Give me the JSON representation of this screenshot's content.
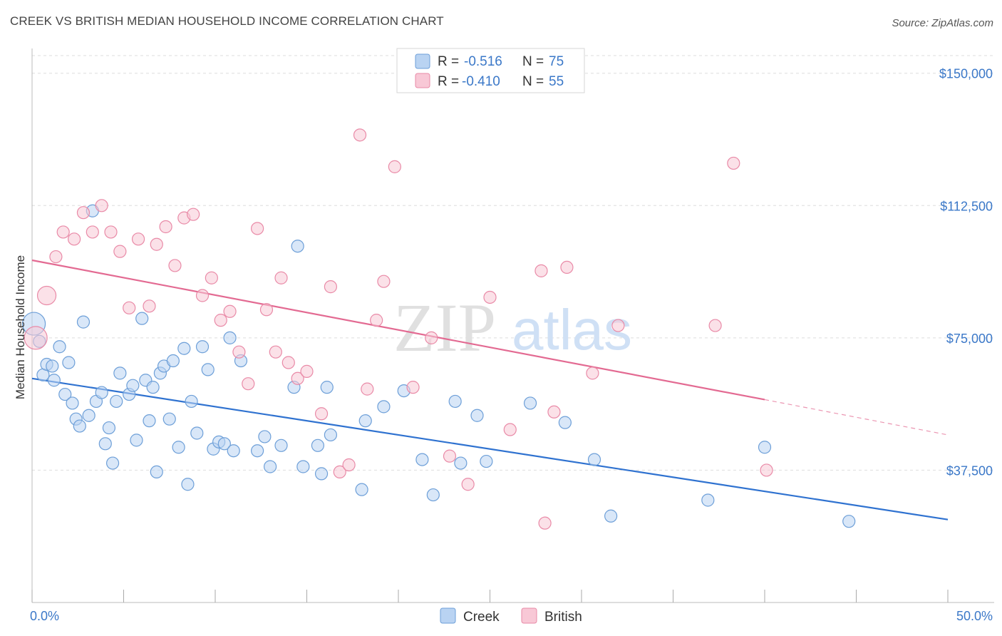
{
  "title": "CREEK VS BRITISH MEDIAN HOUSEHOLD INCOME CORRELATION CHART",
  "source": "Source: ZipAtlas.com",
  "watermark": {
    "zip": "ZIP",
    "atlas": "atlas"
  },
  "colors": {
    "creek_fill": "#b9d3f2",
    "creek_stroke": "#6d9fd8",
    "creek_line": "#2f72d0",
    "british_fill": "#f8c8d6",
    "british_stroke": "#e98aa7",
    "british_line": "#e36a92",
    "tick_text": "#3b78c8",
    "grid": "#dddddd"
  },
  "legend": {
    "rows": [
      {
        "r_label": "R = ",
        "r_value": "-0.516",
        "n_label": "N = ",
        "n_value": "75"
      },
      {
        "r_label": "R = ",
        "r_value": "-0.410",
        "n_label": "N = ",
        "n_value": "55"
      }
    ]
  },
  "bottom_legend": [
    "Creek",
    "British"
  ],
  "chart_data": {
    "type": "scatter",
    "title": "CREEK VS BRITISH MEDIAN HOUSEHOLD INCOME CORRELATION CHART",
    "xlabel": "",
    "ylabel": "Median Household Income",
    "xlim": [
      0,
      50
    ],
    "ylim": [
      0,
      155000
    ],
    "x_tick_labels": [
      "0.0%",
      "50.0%"
    ],
    "y_ticks": [
      37500,
      75000,
      112500,
      150000
    ],
    "y_tick_labels": [
      "$37,500",
      "$75,000",
      "$112,500",
      "$150,000"
    ],
    "grid": true,
    "legend_position": "top-center",
    "series": [
      {
        "name": "Creek",
        "r": -0.516,
        "n": 75,
        "trend": {
          "x": [
            0,
            50
          ],
          "y": [
            63500,
            23500
          ]
        },
        "points": [
          [
            0.1,
            79000,
            3
          ],
          [
            0.4,
            74000,
            1
          ],
          [
            0.6,
            64500,
            1
          ],
          [
            0.8,
            67500,
            1
          ],
          [
            1.1,
            67000,
            1
          ],
          [
            1.2,
            63000,
            1
          ],
          [
            1.5,
            72500,
            1
          ],
          [
            1.8,
            59000,
            1
          ],
          [
            2.0,
            68000,
            1
          ],
          [
            2.2,
            56500,
            1
          ],
          [
            2.4,
            52000,
            1
          ],
          [
            2.6,
            50000,
            1
          ],
          [
            2.8,
            79500,
            1
          ],
          [
            3.1,
            53000,
            1
          ],
          [
            3.3,
            111000,
            1
          ],
          [
            3.5,
            57000,
            1
          ],
          [
            3.8,
            59500,
            1
          ],
          [
            4.0,
            45000,
            1
          ],
          [
            4.2,
            49500,
            1
          ],
          [
            4.4,
            39500,
            1
          ],
          [
            4.6,
            57000,
            1
          ],
          [
            4.8,
            65000,
            1
          ],
          [
            5.3,
            59000,
            1
          ],
          [
            5.5,
            61500,
            1
          ],
          [
            5.7,
            46000,
            1
          ],
          [
            6.0,
            80500,
            1
          ],
          [
            6.2,
            63000,
            1
          ],
          [
            6.4,
            51500,
            1
          ],
          [
            6.6,
            61000,
            1
          ],
          [
            6.8,
            37000,
            1
          ],
          [
            7.0,
            65000,
            1
          ],
          [
            7.2,
            67000,
            1
          ],
          [
            7.5,
            52000,
            1
          ],
          [
            7.7,
            68500,
            1
          ],
          [
            8.0,
            44000,
            1
          ],
          [
            8.3,
            72000,
            1
          ],
          [
            8.5,
            33500,
            1
          ],
          [
            8.7,
            57000,
            1
          ],
          [
            9.0,
            48000,
            1
          ],
          [
            9.3,
            72500,
            1
          ],
          [
            9.6,
            66000,
            1
          ],
          [
            9.9,
            43500,
            1
          ],
          [
            10.2,
            45500,
            1
          ],
          [
            10.5,
            45000,
            1
          ],
          [
            10.8,
            75000,
            1
          ],
          [
            11.0,
            43000,
            1
          ],
          [
            11.4,
            68500,
            1
          ],
          [
            12.3,
            43000,
            1
          ],
          [
            12.7,
            47000,
            1
          ],
          [
            13.0,
            38500,
            1
          ],
          [
            13.6,
            44500,
            1
          ],
          [
            14.3,
            61000,
            1
          ],
          [
            14.5,
            101000,
            1
          ],
          [
            14.8,
            38500,
            1
          ],
          [
            15.6,
            44500,
            1
          ],
          [
            15.8,
            36500,
            1
          ],
          [
            16.1,
            61000,
            1
          ],
          [
            16.3,
            47500,
            1
          ],
          [
            18.0,
            32000,
            1
          ],
          [
            18.2,
            51500,
            1
          ],
          [
            19.2,
            55500,
            1
          ],
          [
            20.3,
            60000,
            1
          ],
          [
            21.3,
            40500,
            1
          ],
          [
            21.9,
            30500,
            1
          ],
          [
            23.1,
            57000,
            1
          ],
          [
            23.4,
            39500,
            1
          ],
          [
            24.3,
            53000,
            1
          ],
          [
            24.8,
            40000,
            1
          ],
          [
            27.2,
            56500,
            1
          ],
          [
            29.1,
            51000,
            1
          ],
          [
            30.7,
            40500,
            1
          ],
          [
            31.6,
            24500,
            1
          ],
          [
            36.9,
            29000,
            1
          ],
          [
            40.0,
            44000,
            1
          ],
          [
            44.6,
            23000,
            1
          ]
        ]
      },
      {
        "name": "British",
        "r": -0.41,
        "n": 55,
        "trend": {
          "x": [
            0,
            40
          ],
          "y": [
            97000,
            57500
          ]
        },
        "dashed_extension": {
          "x": [
            40,
            50
          ],
          "y": [
            57500,
            47500
          ]
        },
        "points": [
          [
            0.2,
            75000,
            3
          ],
          [
            0.8,
            87000,
            2
          ],
          [
            1.3,
            98000,
            1
          ],
          [
            1.7,
            105000,
            1
          ],
          [
            2.3,
            103000,
            1
          ],
          [
            2.8,
            110500,
            1
          ],
          [
            3.3,
            105000,
            1
          ],
          [
            3.8,
            112500,
            1
          ],
          [
            4.3,
            105000,
            1
          ],
          [
            4.8,
            99500,
            1
          ],
          [
            5.3,
            83500,
            1
          ],
          [
            5.8,
            103000,
            1
          ],
          [
            6.4,
            84000,
            1
          ],
          [
            6.8,
            101500,
            1
          ],
          [
            7.3,
            106500,
            1
          ],
          [
            7.8,
            95500,
            1
          ],
          [
            8.3,
            109000,
            1
          ],
          [
            8.8,
            110000,
            1
          ],
          [
            9.3,
            87000,
            1
          ],
          [
            9.8,
            92000,
            1
          ],
          [
            10.3,
            80000,
            1
          ],
          [
            10.8,
            82500,
            1
          ],
          [
            11.3,
            71000,
            1
          ],
          [
            11.8,
            62000,
            1
          ],
          [
            12.3,
            106000,
            1
          ],
          [
            12.8,
            83000,
            1
          ],
          [
            13.3,
            71000,
            1
          ],
          [
            13.6,
            92000,
            1
          ],
          [
            14.0,
            68000,
            1
          ],
          [
            14.5,
            63500,
            1
          ],
          [
            15.0,
            65500,
            1
          ],
          [
            15.8,
            53500,
            1
          ],
          [
            16.3,
            89500,
            1
          ],
          [
            16.8,
            37000,
            1
          ],
          [
            17.3,
            39000,
            1
          ],
          [
            17.9,
            132500,
            1
          ],
          [
            18.3,
            60500,
            1
          ],
          [
            18.8,
            80000,
            1
          ],
          [
            19.2,
            91000,
            1
          ],
          [
            19.8,
            123500,
            1
          ],
          [
            20.8,
            61000,
            1
          ],
          [
            21.8,
            75000,
            1
          ],
          [
            22.8,
            41500,
            1
          ],
          [
            23.8,
            33500,
            1
          ],
          [
            25.0,
            86500,
            1
          ],
          [
            26.1,
            49000,
            1
          ],
          [
            27.8,
            94000,
            1
          ],
          [
            28.0,
            22500,
            1
          ],
          [
            28.5,
            54000,
            1
          ],
          [
            29.2,
            95000,
            1
          ],
          [
            30.6,
            65000,
            1
          ],
          [
            32.0,
            78500,
            1
          ],
          [
            37.3,
            78500,
            1
          ],
          [
            38.3,
            124500,
            1
          ],
          [
            40.1,
            37500,
            1
          ]
        ]
      }
    ]
  }
}
